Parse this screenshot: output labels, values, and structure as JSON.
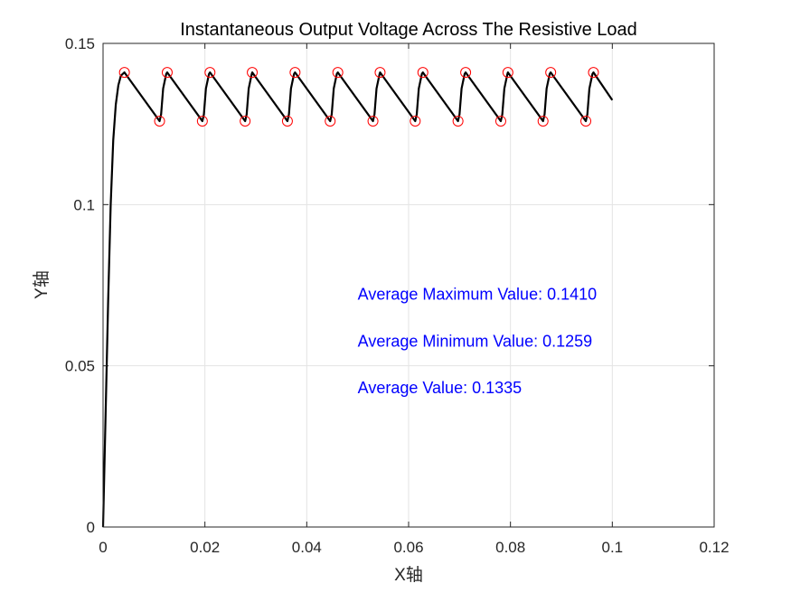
{
  "chart_data": {
    "type": "line",
    "title": "Instantaneous Output Voltage Across The Resistive Load",
    "xlabel": "X轴",
    "ylabel": "Y轴",
    "xlim": [
      0,
      0.12
    ],
    "ylim": [
      0,
      0.15
    ],
    "xticks": [
      0,
      0.02,
      0.04,
      0.06,
      0.08,
      0.1,
      0.12
    ],
    "xtick_labels": [
      "0",
      "0.02",
      "0.04",
      "0.06",
      "0.08",
      "0.1",
      "0.12"
    ],
    "yticks": [
      0,
      0.05,
      0.1,
      0.15
    ],
    "ytick_labels": [
      "0",
      "0.05",
      "0.1",
      "0.15"
    ],
    "grid": true,
    "series": [
      {
        "role": "signal",
        "color": "#000000",
        "x": [
          0,
          0.0005,
          0.001,
          0.0015,
          0.002,
          0.0025,
          0.003,
          0.0035,
          0.0042,
          0.0111,
          0.0114,
          0.0118,
          0.0124,
          0.0126,
          0.0195,
          0.0198,
          0.0202,
          0.0208,
          0.021,
          0.0279,
          0.0282,
          0.0286,
          0.0292,
          0.0293,
          0.0362,
          0.0365,
          0.0369,
          0.0375,
          0.0377,
          0.0446,
          0.0449,
          0.0453,
          0.0459,
          0.0461,
          0.053,
          0.0533,
          0.0537,
          0.0543,
          0.0544,
          0.0613,
          0.0616,
          0.062,
          0.0626,
          0.0628,
          0.0697,
          0.07,
          0.0704,
          0.071,
          0.0712,
          0.0781,
          0.0784,
          0.0788,
          0.0794,
          0.0795,
          0.0864,
          0.0867,
          0.0871,
          0.0877,
          0.0879,
          0.0948,
          0.0951,
          0.0955,
          0.0961,
          0.0963,
          0.1
        ],
        "y": [
          0,
          0.035,
          0.07,
          0.1,
          0.12,
          0.131,
          0.137,
          0.14,
          0.141,
          0.1259,
          0.128,
          0.136,
          0.1405,
          0.141,
          0.1259,
          0.128,
          0.136,
          0.1405,
          0.141,
          0.1259,
          0.128,
          0.136,
          0.1405,
          0.141,
          0.1259,
          0.128,
          0.136,
          0.1405,
          0.141,
          0.1259,
          0.128,
          0.136,
          0.1405,
          0.141,
          0.1259,
          0.128,
          0.136,
          0.1405,
          0.141,
          0.1259,
          0.128,
          0.136,
          0.1405,
          0.141,
          0.1259,
          0.128,
          0.136,
          0.1405,
          0.141,
          0.1259,
          0.128,
          0.136,
          0.1405,
          0.141,
          0.1259,
          0.128,
          0.136,
          0.1405,
          0.141,
          0.1259,
          0.128,
          0.136,
          0.1405,
          0.141,
          0.1324
        ]
      },
      {
        "role": "maxima-markers",
        "color": "#ff0000",
        "x": [
          0.0042,
          0.0126,
          0.021,
          0.0293,
          0.0377,
          0.0461,
          0.0544,
          0.0628,
          0.0712,
          0.0795,
          0.0879,
          0.0963
        ],
        "y": [
          0.141,
          0.141,
          0.141,
          0.141,
          0.141,
          0.141,
          0.141,
          0.141,
          0.141,
          0.141,
          0.141,
          0.141
        ]
      },
      {
        "role": "minima-markers",
        "color": "#ff0000",
        "x": [
          0.0111,
          0.0195,
          0.0279,
          0.0362,
          0.0446,
          0.053,
          0.0613,
          0.0697,
          0.0781,
          0.0864,
          0.0948
        ],
        "y": [
          0.1259,
          0.1259,
          0.1259,
          0.1259,
          0.1259,
          0.1259,
          0.1259,
          0.1259,
          0.1259,
          0.1259,
          0.1259
        ]
      }
    ],
    "annotations": [
      {
        "text": "Average Maximum Value: 0.1410",
        "x": 0.05,
        "y": 0.0705
      },
      {
        "text": "Average Minimum Value: 0.1259",
        "x": 0.05,
        "y": 0.056
      },
      {
        "text": "Average Value: 0.1335",
        "x": 0.05,
        "y": 0.0415
      }
    ],
    "annotation_color": "#0000ff"
  }
}
